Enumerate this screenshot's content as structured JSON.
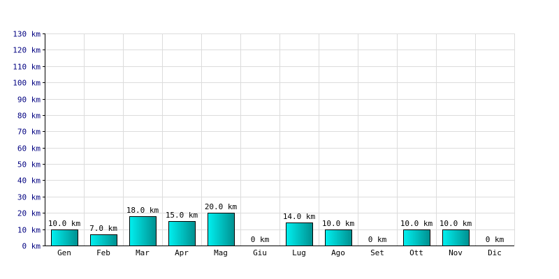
{
  "chart_data": {
    "type": "bar",
    "title": "",
    "xlabel": "",
    "ylabel": "",
    "categories": [
      "Gen",
      "Feb",
      "Mar",
      "Apr",
      "Mag",
      "Giu",
      "Lug",
      "Ago",
      "Set",
      "Ott",
      "Nov",
      "Dic"
    ],
    "values": [
      10.0,
      7.0,
      18.0,
      15.0,
      20.0,
      0,
      14.0,
      10.0,
      0,
      10.0,
      10.0,
      0
    ],
    "data_labels": [
      "10.0 km",
      "7.0 km",
      "18.0 km",
      "15.0 km",
      "20.0 km",
      "0 km",
      "14.0 km",
      "10.0 km",
      "0 km",
      "10.0 km",
      "10.0 km",
      "0 km"
    ],
    "ylim": [
      0,
      130
    ],
    "y_ticks": [
      0,
      10,
      20,
      30,
      40,
      50,
      60,
      70,
      80,
      90,
      100,
      110,
      120,
      130
    ],
    "y_tick_labels": [
      "0 km",
      "10 km",
      "20 km",
      "30 km",
      "40 km",
      "50 km",
      "60 km",
      "70 km",
      "80 km",
      "90 km",
      "100 km",
      "110 km",
      "120 km",
      "130 km"
    ],
    "grid": true,
    "legend": "none",
    "colors": {
      "bar_light": "#00f0f0",
      "bar_dark": "#009090",
      "grid": "#dcdcdc",
      "tick_text": "#000080"
    }
  }
}
